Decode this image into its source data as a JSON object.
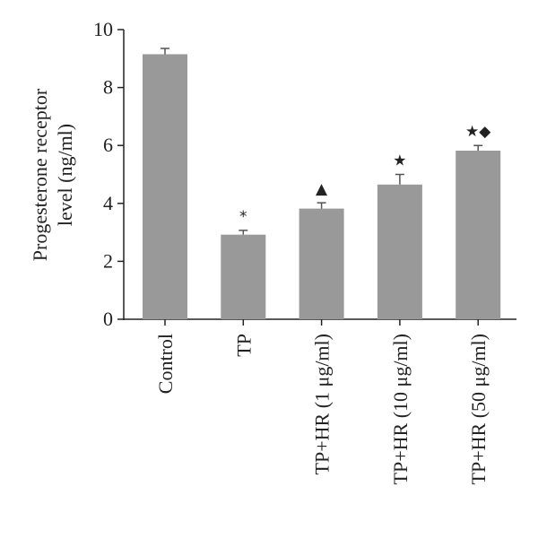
{
  "chart_data": {
    "type": "bar",
    "ylabel": [
      "Progesterone receptor",
      "level (ng/ml)"
    ],
    "categories": [
      "Control",
      "TP",
      "TP+HR (1 μg/ml)",
      "TP+HR (10 μg/ml)",
      "TP+HR (50 μg/ml)"
    ],
    "values": [
      9.15,
      2.92,
      3.82,
      4.65,
      5.82
    ],
    "errors": [
      0.2,
      0.15,
      0.2,
      0.35,
      0.18
    ],
    "annotations": [
      null,
      "*",
      "▲",
      "★",
      "★◆"
    ],
    "color": "#999999",
    "ylim": [
      0,
      10
    ],
    "yticks": [
      0,
      2,
      4,
      6,
      8,
      10
    ]
  }
}
